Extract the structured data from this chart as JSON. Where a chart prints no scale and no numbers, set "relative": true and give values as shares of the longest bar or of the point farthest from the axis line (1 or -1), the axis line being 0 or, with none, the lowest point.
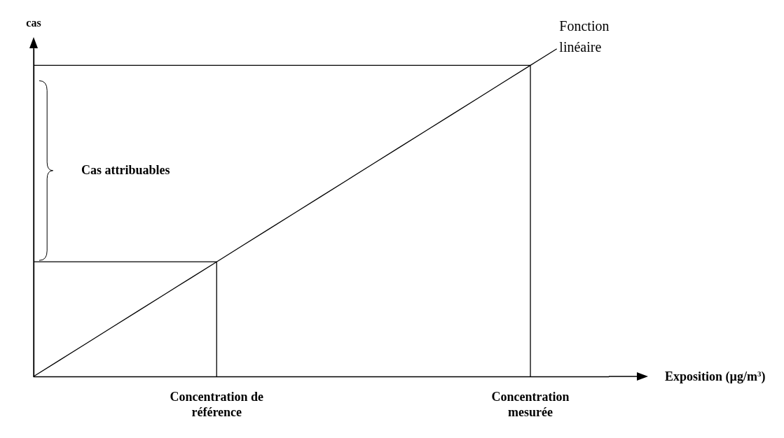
{
  "chart_data": {
    "type": "line",
    "relative": true,
    "xlabel": "Exposition (µg/m$^{3}$)",
    "ylabel": "cas",
    "categories": [
      null,
      null,
      null,
      null,
      null,
      null,
      null,
      "Concentration de\nréférence",
      null,
      null,
      null,
      null,
      null,
      null,
      null,
      null,
      null,
      null,
      null,
      "Concentration\nmesurée",
      null,
      null,
      null
    ],
    "series": [
      {
        "color": "#000000",
        "values": [
          0,
          0.05,
          0.1,
          0.15,
          0.2,
          0.25,
          0.3,
          0.35,
          0.4,
          0.45,
          0.5,
          0.55,
          0.6,
          0.65,
          0.7,
          0.75,
          0.8,
          0.85,
          0.9,
          0.95,
          1,
          null,
          null
        ]
      }
    ],
    "ref_lines": [
      {
        "axis": "y",
        "value": 0.35,
        "color": "#000000"
      },
      {
        "axis": "y",
        "value": 0.95,
        "color": "#000000"
      }
    ],
    "annotations": [
      "Fonction\nlinéaire",
      "Cas attribuables"
    ],
    "marker": "none",
    "line_style": "solid"
  }
}
